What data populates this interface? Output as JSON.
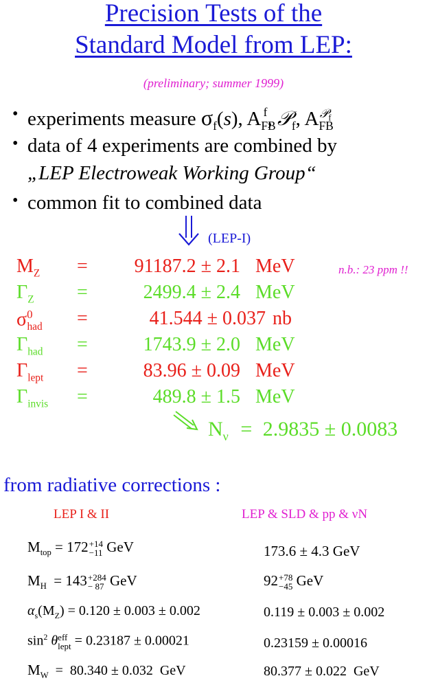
{
  "title": {
    "line1": "Precision Tests of the",
    "line2": "Standard Model from LEP:"
  },
  "subtitle": "(preliminary; summer 1999)",
  "bullets": {
    "b1_prefix": "experiments measure ",
    "b2_line1": "data of 4 experiments are combined by",
    "b2_line2": "„LEP Electroweak Working Group“",
    "b3": "common fit to combined data"
  },
  "lep1_label": "(LEP-I)",
  "note": "n.b.: 23 ppm !!",
  "results": [
    {
      "sym": "M",
      "sub": "Z",
      "eq": "=",
      "val": "91187.2 ± 2.1",
      "unit": "MeV",
      "color": "#e8201a"
    },
    {
      "sym": "Γ",
      "sub": "Z",
      "eq": "=",
      "val": "2499.4 ± 2.4",
      "unit": "MeV",
      "color": "#5bdc28"
    },
    {
      "sym": "σ",
      "sup": "0",
      "sub": "had",
      "eq": "=",
      "val": "41.544 ± 0.037",
      "unit": "nb",
      "color": "#e8201a"
    },
    {
      "sym": "Γ",
      "sub": "had",
      "eq": "=",
      "val": "1743.9 ± 2.0",
      "unit": "MeV",
      "color": "#5bdc28"
    },
    {
      "sym": "Γ",
      "sub": "lept",
      "eq": "=",
      "val": "83.96 ± 0.09",
      "unit": "MeV",
      "color": "#e8201a"
    },
    {
      "sym": "Γ",
      "sub": "invis",
      "eq": "=",
      "val": "489.8 ± 1.5",
      "unit": "MeV",
      "color": "#5bdc28"
    }
  ],
  "nnu": {
    "sym": "N",
    "sub": "ν",
    "eq": "=",
    "val": "2.9835 ± 0.0083"
  },
  "radiative": {
    "heading": "from radiative corrections :",
    "col1": "LEP I & II",
    "col2": "LEP & SLD & pp & νN",
    "rows": [
      {
        "left": "M",
        "left_sub": "top",
        "left_rest": " = 172",
        "left_sup": "+14",
        "left_sub2": "−11",
        "left_unit": " GeV",
        "right": "173.6 ± 4.3  GeV"
      },
      {
        "left": "M",
        "left_sub": "H",
        "left_rest": "  = 143",
        "left_sup": "+284",
        "left_sub2": "− 87",
        "left_unit": " GeV",
        "right_main": "92",
        "right_sup": "+78",
        "right_sub": "−45",
        "right_unit": " GeV"
      },
      {
        "left_text": "α",
        "left_sub": "s",
        "left_rest": "(M",
        "left_rest_sub": "Z",
        "left_tail": ") = 0.120 ± 0.003 ± 0.002",
        "right": "0.119 ± 0.003 ± 0.002"
      },
      {
        "left_text": "sin",
        "left_sup": "2",
        "left_theta": " θ",
        "left_theta_sup": "eff",
        "left_theta_sub": "lept",
        "left_tail": " = 0.23187 ± 0.00021",
        "right": "0.23159 ± 0.00016"
      },
      {
        "left": "M",
        "left_sub": "W",
        "left_tail": "  =  80.340 ± 0.032  GeV",
        "right": "80.377 ± 0.022  GeV"
      }
    ]
  }
}
